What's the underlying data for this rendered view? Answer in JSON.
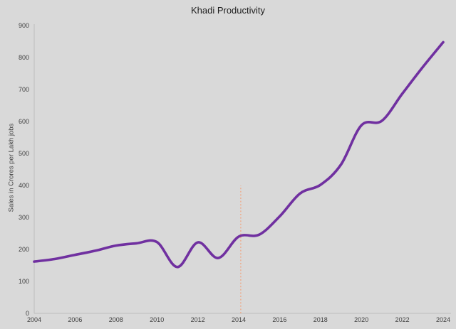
{
  "colors": {
    "background": "#d9d9d9",
    "axis": "#bdbdbd",
    "line": "#7030A0",
    "vline": "#F0A580",
    "text": "#404040",
    "title_text": "#1f1f1f"
  },
  "chart_data": {
    "type": "line",
    "title": "Khadi Productivity",
    "xlabel": "",
    "ylabel": "Sales in Crores per Lakh jobs",
    "xlim": [
      2004,
      2024
    ],
    "ylim": [
      0,
      900
    ],
    "x_ticks": [
      "2004",
      "2006",
      "2008",
      "2010",
      "2012",
      "2014",
      "2016",
      "2018",
      "2020",
      "2022",
      "2024"
    ],
    "y_ticks": [
      "0",
      "100",
      "200",
      "300",
      "400",
      "500",
      "600",
      "700",
      "800",
      "900"
    ],
    "grid": false,
    "legend_position": "none",
    "series": [
      {
        "color": "#7030A0",
        "x": [
          2004,
          2005,
          2006,
          2007,
          2008,
          2009,
          2010,
          2011,
          2012,
          2013,
          2014,
          2015,
          2016,
          2017,
          2018,
          2019,
          2020,
          2021,
          2022,
          2023,
          2024
        ],
        "values": [
          162,
          170,
          183,
          196,
          212,
          219,
          223,
          145,
          222,
          173,
          240,
          246,
          303,
          375,
          402,
          465,
          588,
          602,
          687,
          770,
          848
        ]
      }
    ],
    "annotations": [
      {
        "type": "vline",
        "x": 2014.1,
        "y_from": 0,
        "y_to": 400,
        "style": "dotted",
        "color": "#F0A580"
      }
    ]
  }
}
